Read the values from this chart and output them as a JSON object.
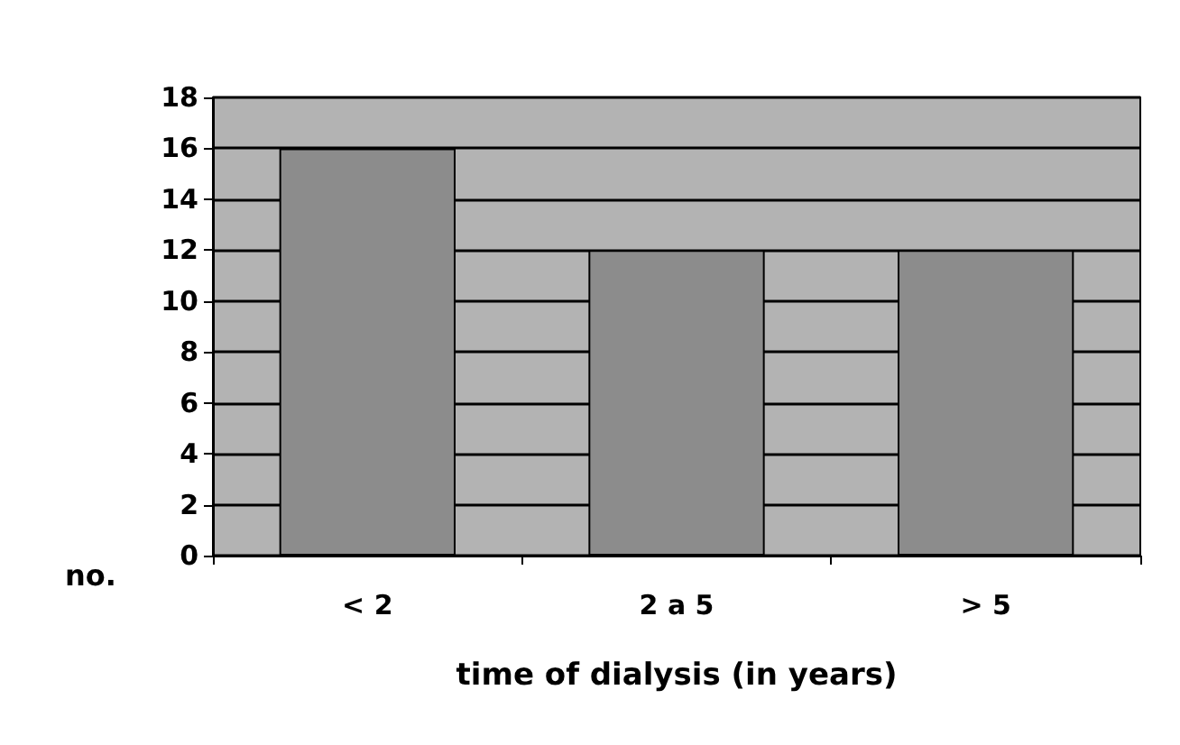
{
  "chart_data": {
    "type": "bar",
    "xlabel": "time of dialysis (in years)",
    "ylabel": "no.",
    "categories": [
      "< 2",
      "2 a 5",
      "> 5"
    ],
    "values": [
      16,
      12,
      12
    ],
    "color": "#8c8c8c",
    "ylim": [
      0,
      18
    ],
    "yticks": [
      0,
      2,
      4,
      6,
      8,
      10,
      12,
      14,
      16,
      18
    ],
    "grid": "y"
  }
}
